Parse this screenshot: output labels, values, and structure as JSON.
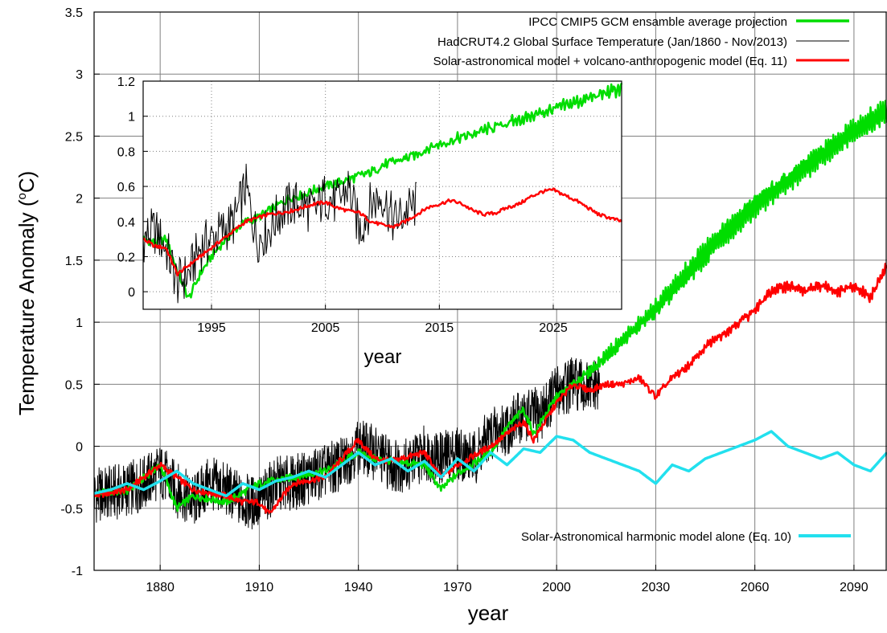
{
  "chart_data": [
    {
      "type": "line",
      "xlabel": "year",
      "ylabel": "Temperature Anomaly (",
      "ylabel_sup": "o",
      "ylabel_unit": "C)",
      "xlim": [
        1860,
        2100
      ],
      "ylim": [
        -1,
        3.5
      ],
      "xticks": [
        1880,
        1910,
        1940,
        1970,
        2000,
        2030,
        2060,
        2090
      ],
      "yticks": [
        -1,
        -0.5,
        0,
        0.5,
        1,
        1.5,
        2,
        2.5,
        3,
        3.5
      ],
      "ytick_labels": [
        "-1",
        "-0.5",
        "0",
        "0.5",
        "1",
        "1.5",
        "2",
        "2.5",
        "3",
        "3.5"
      ],
      "grid": "on",
      "legend_placement": "top-right",
      "legend_bottom_placement": "bottom-right",
      "series": [
        {
          "name": "IPCC CMIP5 GCM ensamble average projection",
          "color": "#00dd00",
          "x": [
            1860,
            1870,
            1880,
            1885,
            1890,
            1900,
            1910,
            1920,
            1930,
            1940,
            1945,
            1950,
            1960,
            1965,
            1970,
            1980,
            1985,
            1990,
            1993,
            2000,
            2010,
            2020,
            2030,
            2040,
            2050,
            2060,
            2070,
            2080,
            2090,
            2100
          ],
          "values": [
            -0.38,
            -0.36,
            -0.15,
            -0.5,
            -0.4,
            -0.45,
            -0.3,
            -0.25,
            -0.2,
            -0.05,
            -0.1,
            -0.12,
            -0.15,
            -0.35,
            -0.22,
            -0.05,
            0.15,
            0.3,
            0.1,
            0.4,
            0.6,
            0.85,
            1.1,
            1.4,
            1.7,
            1.95,
            2.15,
            2.35,
            2.55,
            2.7
          ]
        },
        {
          "name": "HadCRUT4.2 Global Surface Temperature (Jan/1860 - Nov/2013)",
          "color": "#000000",
          "x": [
            1860,
            1870,
            1875,
            1880,
            1885,
            1890,
            1895,
            1900,
            1905,
            1910,
            1915,
            1920,
            1925,
            1930,
            1935,
            1940,
            1945,
            1950,
            1955,
            1960,
            1965,
            1970,
            1975,
            1980,
            1985,
            1990,
            1995,
            2000,
            2005,
            2010,
            2013
          ],
          "values": [
            -0.4,
            -0.35,
            -0.3,
            -0.2,
            -0.35,
            -0.45,
            -0.3,
            -0.35,
            -0.45,
            -0.45,
            -0.3,
            -0.3,
            -0.25,
            -0.2,
            -0.15,
            0.0,
            -0.05,
            -0.15,
            -0.15,
            -0.05,
            -0.1,
            -0.05,
            -0.1,
            0.1,
            0.15,
            0.25,
            0.25,
            0.45,
            0.5,
            0.45,
            0.5
          ]
        },
        {
          "name": "Solar-astronomical model + volcano-anthropogenic model (Eq. 11)",
          "color": "#ff0000",
          "x": [
            1860,
            1870,
            1880,
            1890,
            1900,
            1905,
            1910,
            1913,
            1920,
            1930,
            1940,
            1945,
            1950,
            1960,
            1965,
            1970,
            1980,
            1990,
            1993,
            2000,
            2005,
            2010,
            2015,
            2020,
            2025,
            2030,
            2035,
            2040,
            2045,
            2050,
            2055,
            2060,
            2065,
            2070,
            2075,
            2080,
            2085,
            2090,
            2095,
            2100
          ],
          "values": [
            -0.4,
            -0.35,
            -0.15,
            -0.35,
            -0.4,
            -0.45,
            -0.45,
            -0.55,
            -0.3,
            -0.25,
            0.05,
            -0.1,
            -0.12,
            -0.05,
            -0.25,
            -0.15,
            0.0,
            0.2,
            0.05,
            0.35,
            0.5,
            0.45,
            0.5,
            0.5,
            0.55,
            0.4,
            0.55,
            0.65,
            0.8,
            0.9,
            1.0,
            1.1,
            1.25,
            1.3,
            1.25,
            1.3,
            1.25,
            1.3,
            1.2,
            1.45
          ]
        },
        {
          "name": "Solar-Astronomical harmonic model alone (Eq. 10)",
          "color": "#22e0ee",
          "x": [
            1860,
            1865,
            1870,
            1875,
            1880,
            1885,
            1890,
            1895,
            1900,
            1905,
            1910,
            1915,
            1920,
            1925,
            1930,
            1935,
            1940,
            1945,
            1950,
            1955,
            1960,
            1965,
            1970,
            1975,
            1980,
            1985,
            1990,
            1995,
            2000,
            2005,
            2010,
            2015,
            2020,
            2025,
            2030,
            2035,
            2040,
            2045,
            2050,
            2055,
            2060,
            2065,
            2070,
            2075,
            2080,
            2085,
            2090,
            2095,
            2100
          ],
          "values": [
            -0.38,
            -0.35,
            -0.3,
            -0.35,
            -0.28,
            -0.2,
            -0.3,
            -0.35,
            -0.4,
            -0.3,
            -0.35,
            -0.28,
            -0.25,
            -0.2,
            -0.25,
            -0.15,
            -0.05,
            -0.15,
            -0.1,
            -0.2,
            -0.12,
            -0.25,
            -0.1,
            -0.2,
            -0.05,
            -0.15,
            -0.02,
            -0.05,
            0.08,
            0.05,
            -0.05,
            -0.1,
            -0.15,
            -0.2,
            -0.3,
            -0.15,
            -0.2,
            -0.1,
            -0.05,
            0.0,
            0.05,
            0.12,
            0.0,
            -0.05,
            -0.1,
            -0.05,
            -0.15,
            -0.2,
            -0.05
          ]
        }
      ]
    },
    {
      "type": "line",
      "inset": true,
      "xlabel": "year",
      "xlim": [
        1989,
        2031
      ],
      "ylim": [
        -0.1,
        1.2
      ],
      "xticks": [
        1995,
        2005,
        2015,
        2025
      ],
      "yticks": [
        0,
        0.2,
        0.4,
        0.6,
        0.8,
        1,
        1.2
      ],
      "ytick_labels": [
        "0",
        "0.2",
        "0.4",
        "0.6",
        "0.8",
        "1",
        "1.2"
      ],
      "grid": "on",
      "series": [
        {
          "name": "IPCC CMIP5 GCM ensamble average projection",
          "color": "#00dd00",
          "x": [
            1989,
            1990,
            1991,
            1992,
            1993,
            1994,
            1995,
            1996,
            1997,
            1998,
            1999,
            2000,
            2001,
            2002,
            2003,
            2004,
            2005,
            2006,
            2007,
            2008,
            2009,
            2010,
            2011,
            2012,
            2013,
            2014,
            2015,
            2016,
            2017,
            2018,
            2019,
            2020,
            2021,
            2022,
            2023,
            2024,
            2025,
            2026,
            2027,
            2028,
            2029,
            2030,
            2031
          ],
          "values": [
            0.3,
            0.28,
            0.3,
            0.12,
            -0.04,
            0.1,
            0.2,
            0.28,
            0.35,
            0.4,
            0.42,
            0.46,
            0.5,
            0.54,
            0.55,
            0.58,
            0.6,
            0.62,
            0.64,
            0.66,
            0.68,
            0.72,
            0.74,
            0.76,
            0.78,
            0.82,
            0.84,
            0.86,
            0.88,
            0.9,
            0.92,
            0.94,
            0.96,
            0.98,
            1.0,
            1.02,
            1.04,
            1.06,
            1.08,
            1.1,
            1.12,
            1.14,
            1.16
          ]
        },
        {
          "name": "HadCRUT4.2 Global Surface Temperature (Jan/1860 - Nov/2013)",
          "color": "#000000",
          "x": [
            1989,
            1990,
            1991,
            1992,
            1993,
            1994,
            1995,
            1996,
            1997,
            1998,
            1999,
            2000,
            2001,
            2002,
            2003,
            2004,
            2005,
            2006,
            2007,
            2008,
            2009,
            2010,
            2011,
            2012,
            2013
          ],
          "values": [
            0.3,
            0.35,
            0.25,
            0.05,
            0.1,
            0.25,
            0.3,
            0.35,
            0.4,
            0.6,
            0.3,
            0.35,
            0.45,
            0.5,
            0.5,
            0.45,
            0.55,
            0.5,
            0.6,
            0.35,
            0.5,
            0.55,
            0.4,
            0.45,
            0.5
          ]
        },
        {
          "name": "Solar-astronomical model + volcano-anthropogenic model (Eq. 11)",
          "color": "#ff0000",
          "x": [
            1989,
            1990,
            1991,
            1992,
            1993,
            1994,
            1995,
            1996,
            1997,
            1998,
            1999,
            2000,
            2001,
            2002,
            2003,
            2004,
            2005,
            2006,
            2007,
            2008,
            2009,
            2010,
            2011,
            2012,
            2013,
            2014,
            2015,
            2016,
            2017,
            2018,
            2019,
            2020,
            2021,
            2022,
            2023,
            2024,
            2025,
            2026,
            2027,
            2028,
            2029,
            2030,
            2031
          ],
          "values": [
            0.3,
            0.26,
            0.25,
            0.1,
            0.15,
            0.2,
            0.25,
            0.3,
            0.35,
            0.4,
            0.42,
            0.44,
            0.45,
            0.46,
            0.48,
            0.5,
            0.51,
            0.48,
            0.46,
            0.45,
            0.4,
            0.38,
            0.37,
            0.4,
            0.44,
            0.48,
            0.5,
            0.52,
            0.5,
            0.46,
            0.44,
            0.45,
            0.48,
            0.5,
            0.54,
            0.57,
            0.58,
            0.55,
            0.52,
            0.48,
            0.44,
            0.42,
            0.4
          ]
        }
      ]
    }
  ]
}
